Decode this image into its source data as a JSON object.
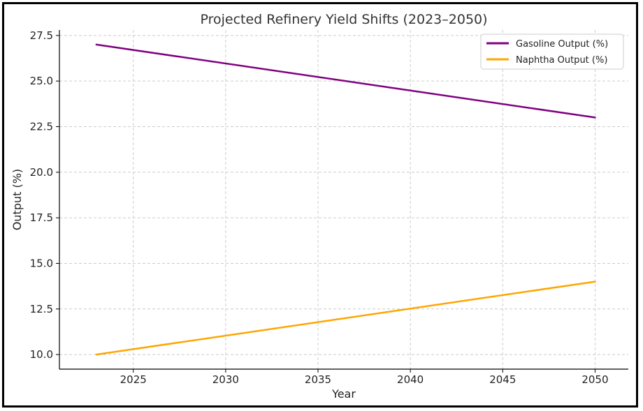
{
  "chart_data": {
    "type": "line",
    "title": "Projected Refinery Yield Shifts (2023–2050)",
    "xlabel": "Year",
    "ylabel": "Output (%)",
    "xlim": [
      2021,
      2051.8
    ],
    "ylim": [
      9.2,
      27.8
    ],
    "xticks": [
      2025,
      2030,
      2035,
      2040,
      2045,
      2050
    ],
    "xtick_labels": [
      "2025",
      "2030",
      "2035",
      "2040",
      "2045",
      "2050"
    ],
    "yticks": [
      10.0,
      12.5,
      15.0,
      17.5,
      20.0,
      22.5,
      25.0,
      27.5
    ],
    "ytick_labels": [
      "10.0",
      "12.5",
      "15.0",
      "17.5",
      "20.0",
      "22.5",
      "25.0",
      "27.5"
    ],
    "grid": true,
    "legend_position": "top-right",
    "series": [
      {
        "name": "Gasoline Output (%)",
        "color": "#800080",
        "x": [
          2023,
          2050
        ],
        "y": [
          27.0,
          23.0
        ]
      },
      {
        "name": "Naphtha Output (%)",
        "color": "#FFA500",
        "x": [
          2023,
          2050
        ],
        "y": [
          10.0,
          14.0
        ]
      }
    ]
  }
}
